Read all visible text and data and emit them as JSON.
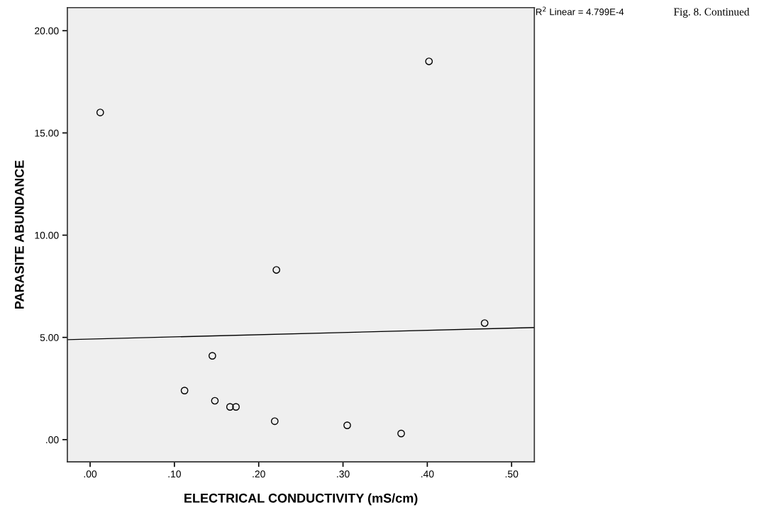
{
  "chart_data": {
    "type": "scatter",
    "xlabel": "ELECTRICAL CONDUCTIVITY (mS/cm)",
    "ylabel": "PARASITE ABUNDANCE",
    "xlim": [
      -0.027,
      0.527
    ],
    "ylim": [
      -1.09,
      21.13
    ],
    "xticks": [
      {
        "value": 0,
        "label": ".00"
      },
      {
        "value": 0.1,
        "label": ".10"
      },
      {
        "value": 0.2,
        "label": ".20"
      },
      {
        "value": 0.3,
        "label": ".30"
      },
      {
        "value": 0.4,
        "label": ".40"
      },
      {
        "value": 0.5,
        "label": ".50"
      }
    ],
    "yticks": [
      {
        "value": 0,
        "label": ".00"
      },
      {
        "value": 5,
        "label": "5.00"
      },
      {
        "value": 10,
        "label": "10.00"
      },
      {
        "value": 15,
        "label": "15.00"
      },
      {
        "value": 20,
        "label": "20.00"
      }
    ],
    "grid": false,
    "legend": false,
    "series": [
      {
        "marker": "circle",
        "color": "#000000",
        "x": [
          0.012,
          0.402,
          0.221,
          0.468,
          0.145,
          0.112,
          0.148,
          0.166,
          0.173,
          0.219,
          0.305,
          0.369
        ],
        "values": [
          16.0,
          18.5,
          8.3,
          5.7,
          4.1,
          2.4,
          1.9,
          1.6,
          1.6,
          0.9,
          0.7,
          0.3
        ]
      },
      {
        "type": "line",
        "color": "#000000",
        "x": [
          -0.027,
          0.527
        ],
        "values": [
          4.89,
          5.48
        ]
      }
    ],
    "annotations": [
      "R$^{2}$ Linear = 4.799E-4",
      "Fig. 8. Continued"
    ]
  }
}
